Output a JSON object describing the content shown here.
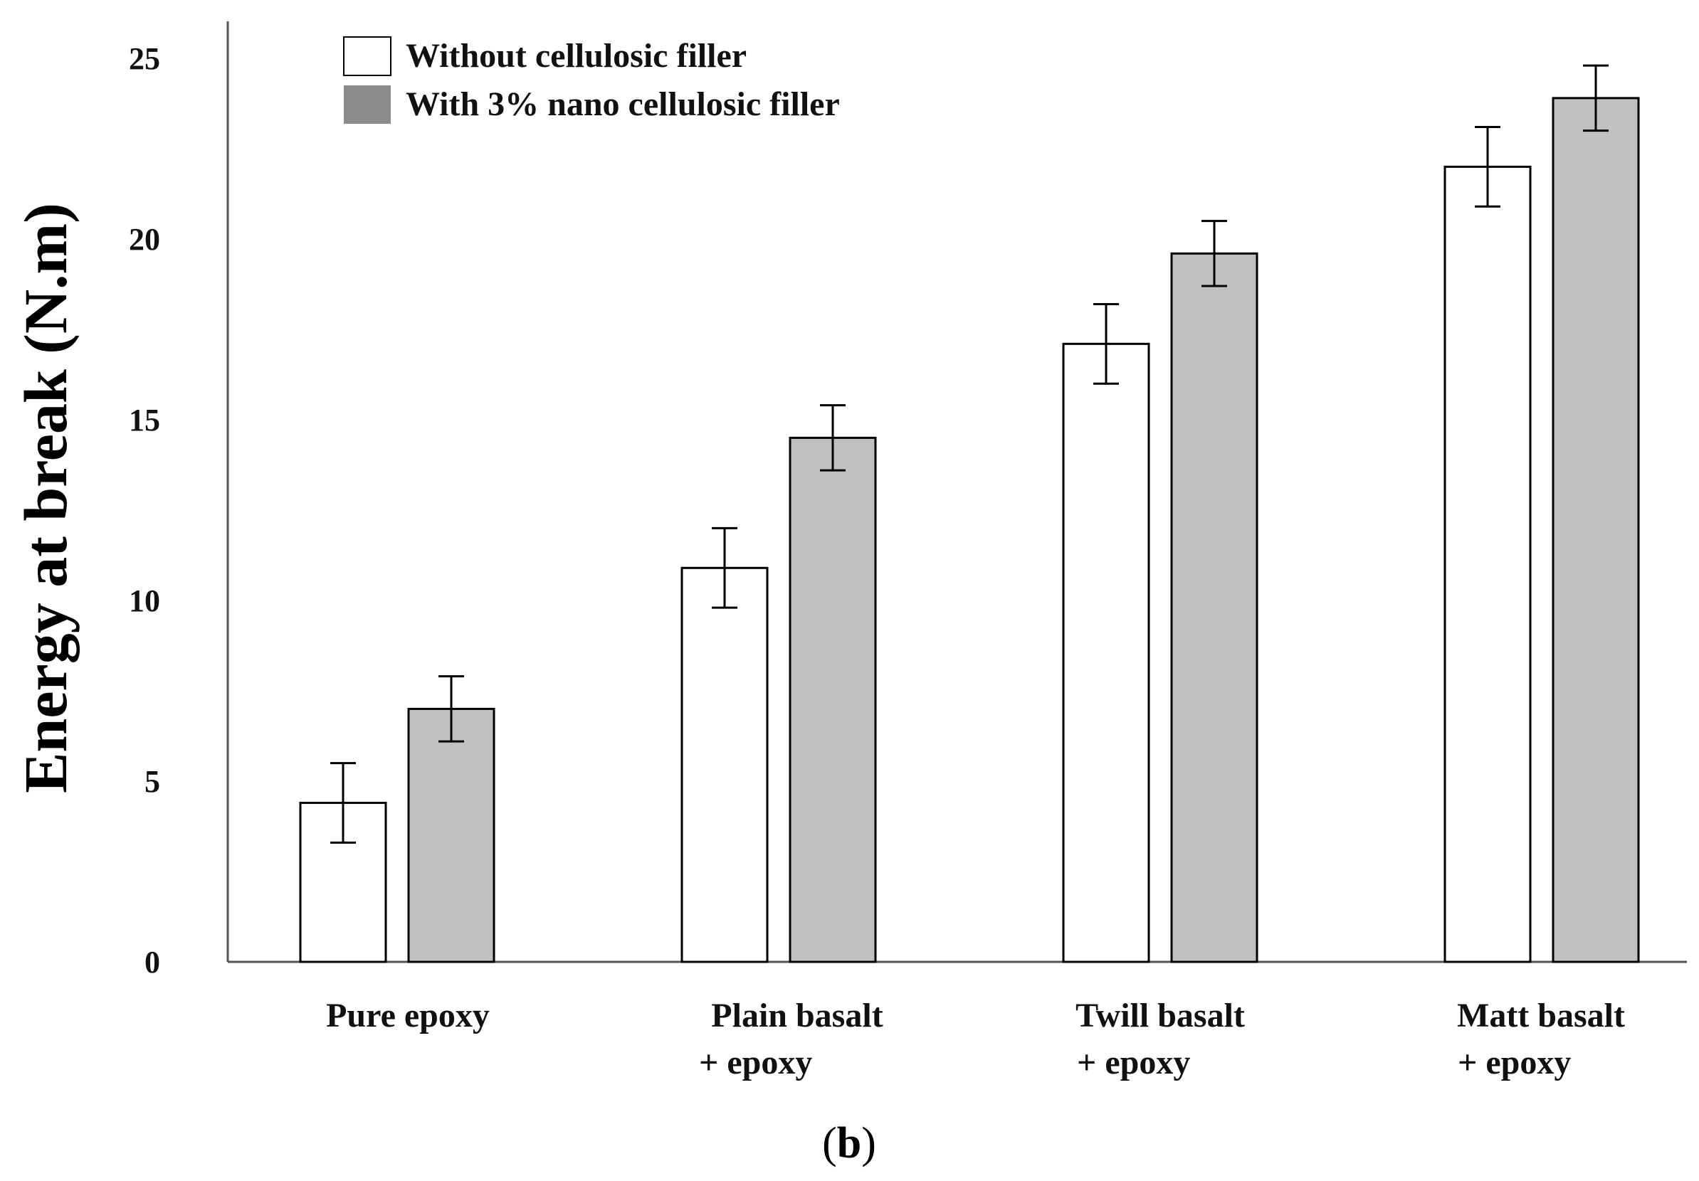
{
  "chart_data": {
    "type": "bar",
    "ylabel": "Energy at break (N.m)",
    "xlabel": "",
    "panel_label": {
      "open": "(",
      "letter": "b",
      "close": ")"
    },
    "categories": [
      [
        "Pure epoxy"
      ],
      [
        "Plain basalt",
        "+ epoxy"
      ],
      [
        "Twill basalt",
        "+ epoxy"
      ],
      [
        "Matt basalt",
        "+ epoxy"
      ]
    ],
    "series": [
      {
        "name": "Without cellulosic filler",
        "color": "#ffffff",
        "values": [
          4.4,
          10.9,
          17.1,
          22.0
        ],
        "error": [
          1.1,
          1.1,
          1.1,
          1.1
        ]
      },
      {
        "name": "With 3% nano cellulosic filler",
        "color": "#c0c0c0",
        "legend_color": "#8c8c8c",
        "values": [
          7.0,
          14.5,
          19.6,
          23.9
        ],
        "error": [
          0.9,
          0.9,
          0.9,
          0.9
        ]
      }
    ],
    "ylim": [
      0,
      25
    ],
    "yticks": [
      0,
      5,
      10,
      15,
      20,
      25
    ],
    "grid": false,
    "legend_position": "top-left",
    "axis_color": "#555555",
    "bar_edge_color": "#000000"
  }
}
